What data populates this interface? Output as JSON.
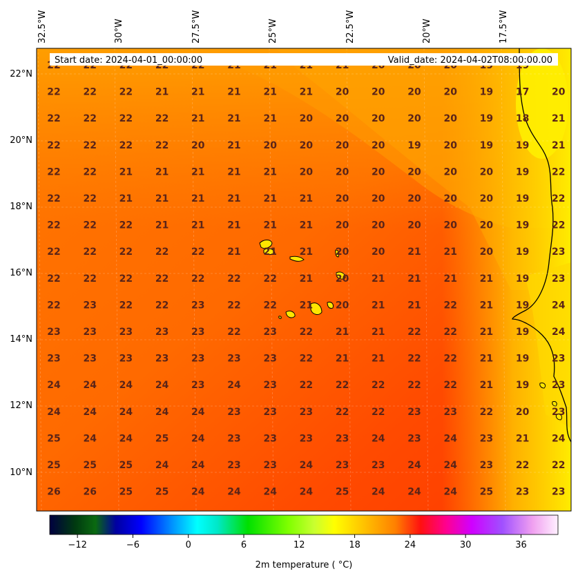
{
  "header": {
    "start_date": "Start date: 2024-04-01_00:00:00",
    "valid_date": "Valid_date: 2024-04-02T08:00:00.00"
  },
  "map": {
    "lon_labels": [
      "32.5°W",
      "30°W",
      "27.5°W",
      "25°W",
      "22.5°W",
      "20°W",
      "17.5°W"
    ],
    "lat_labels": [
      "22°N",
      "20°N",
      "18°N",
      "16°N",
      "14°N",
      "12°N",
      "10°N"
    ],
    "grid_values": [
      [
        "22",
        "22",
        "22",
        "22",
        "22",
        "21",
        "21",
        "21",
        "21",
        "20",
        "20",
        "20",
        "19",
        "19"
      ],
      [
        "22",
        "22",
        "22",
        "21",
        "21",
        "21",
        "21",
        "21",
        "20",
        "20",
        "20",
        "20",
        "19",
        "17",
        "20"
      ],
      [
        "22",
        "22",
        "22",
        "22",
        "21",
        "21",
        "21",
        "20",
        "20",
        "20",
        "20",
        "20",
        "19",
        "18",
        "21"
      ],
      [
        "22",
        "22",
        "22",
        "22",
        "20",
        "21",
        "20",
        "20",
        "20",
        "20",
        "19",
        "20",
        "19",
        "19",
        "21"
      ],
      [
        "22",
        "22",
        "21",
        "21",
        "21",
        "21",
        "21",
        "20",
        "20",
        "20",
        "20",
        "20",
        "20",
        "19",
        "22"
      ],
      [
        "22",
        "22",
        "21",
        "21",
        "21",
        "21",
        "21",
        "21",
        "20",
        "20",
        "20",
        "20",
        "20",
        "19",
        "22"
      ],
      [
        "22",
        "22",
        "22",
        "21",
        "21",
        "21",
        "21",
        "21",
        "20",
        "20",
        "20",
        "20",
        "20",
        "19",
        "22"
      ],
      [
        "22",
        "22",
        "22",
        "22",
        "22",
        "21",
        "21",
        "21",
        "20",
        "20",
        "21",
        "21",
        "20",
        "19",
        "23"
      ],
      [
        "22",
        "22",
        "22",
        "22",
        "22",
        "22",
        "22",
        "21",
        "20",
        "21",
        "21",
        "21",
        "21",
        "19",
        "23"
      ],
      [
        "22",
        "23",
        "22",
        "22",
        "23",
        "22",
        "22",
        "21",
        "20",
        "21",
        "21",
        "22",
        "21",
        "19",
        "24"
      ],
      [
        "23",
        "23",
        "23",
        "23",
        "23",
        "22",
        "23",
        "22",
        "21",
        "21",
        "22",
        "22",
        "21",
        "19",
        "24"
      ],
      [
        "23",
        "23",
        "23",
        "23",
        "23",
        "23",
        "23",
        "22",
        "21",
        "21",
        "22",
        "22",
        "21",
        "19",
        "23"
      ],
      [
        "24",
        "24",
        "24",
        "24",
        "23",
        "24",
        "23",
        "22",
        "22",
        "22",
        "22",
        "22",
        "21",
        "19",
        "23"
      ],
      [
        "24",
        "24",
        "24",
        "24",
        "24",
        "23",
        "23",
        "23",
        "22",
        "22",
        "23",
        "23",
        "22",
        "20",
        "23"
      ],
      [
        "25",
        "24",
        "24",
        "25",
        "24",
        "23",
        "23",
        "23",
        "23",
        "24",
        "23",
        "24",
        "23",
        "21",
        "24"
      ],
      [
        "25",
        "25",
        "25",
        "24",
        "24",
        "23",
        "23",
        "24",
        "23",
        "23",
        "24",
        "24",
        "23",
        "22",
        "22"
      ],
      [
        "26",
        "26",
        "25",
        "25",
        "24",
        "24",
        "24",
        "24",
        "25",
        "24",
        "24",
        "24",
        "25",
        "23",
        "23"
      ]
    ]
  },
  "colorbar": {
    "ticks": [
      "−12",
      "−6",
      "0",
      "6",
      "12",
      "18",
      "24",
      "30",
      "36"
    ],
    "title": "2m temperature ( °C)",
    "tick_values": [
      -12,
      -6,
      0,
      6,
      12,
      18,
      24,
      30,
      36
    ],
    "range": [
      -15,
      40
    ]
  },
  "colors": {
    "sea_warm": "#ff4a00",
    "sea_mid": "#ff7a00",
    "sea_cool": "#ff9a00",
    "coast_yellow": "#ffe800",
    "value_text": "#5a2418"
  }
}
